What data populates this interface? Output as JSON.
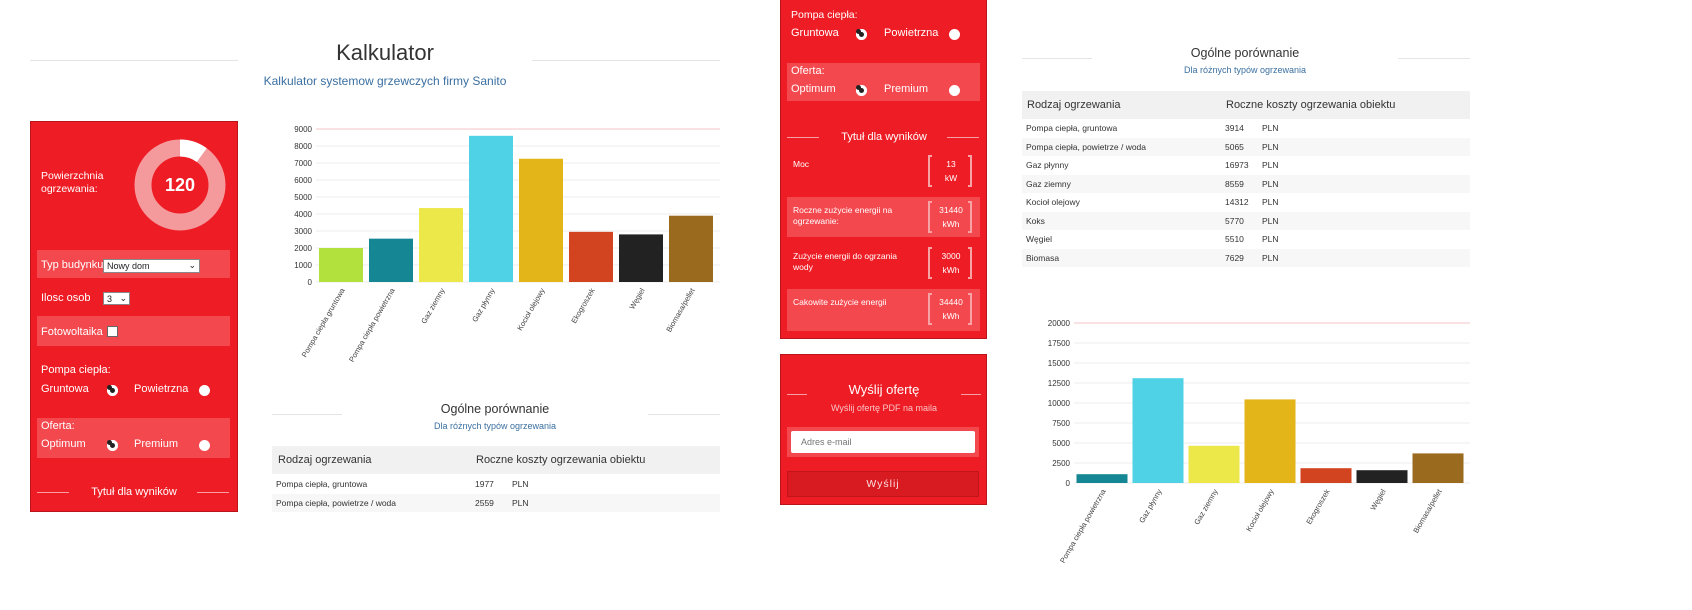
{
  "header": {
    "title": "Kalkulator",
    "subtitle": "Kalkulator systemow grzewczych firmy Sanito"
  },
  "form": {
    "area_label": "Powierzchnia ogrzewania:",
    "area_value": "120",
    "area_fraction": 0.1,
    "building_type_label": "Typ budynku",
    "building_type_value": "Nowy dom",
    "persons_label": "Ilosc osob",
    "persons_value": "3",
    "pv_label": "Fotowoltaika",
    "heat_pump_label": "Pompa ciepła:",
    "heat_pump_options": [
      "Gruntowa",
      "Powietrzna"
    ],
    "offer_label": "Oferta:",
    "offer_options": [
      "Optimum",
      "Premium"
    ],
    "results_title": "Tytuł dla wyników"
  },
  "results": {
    "items": [
      {
        "label": "Moc",
        "value": "13",
        "unit": "kW"
      },
      {
        "label": "Roczne zużycie energii na ogrzewanie:",
        "value": "31440",
        "unit": "kWh"
      },
      {
        "label": "Zużycie energii do ogrzania wody",
        "value": "3000",
        "unit": "kWh"
      },
      {
        "label": "Cakowite zużycie energii",
        "value": "34440",
        "unit": "kWh"
      }
    ]
  },
  "send": {
    "title": "Wyślij ofertę",
    "subtitle": "Wyślij ofertę PDF na maila",
    "email_placeholder": "Adres e-mail",
    "button": "Wyślij"
  },
  "comparison": {
    "title": "Ogólne porównanie",
    "subtitle": "Dla różnych typów ogrzewania",
    "col_type": "Rodzaj ogrzewania",
    "col_cost": "Roczne koszty ogrzewania obiektu",
    "currency": "PLN",
    "rows_left": [
      {
        "type": "Pompa ciepła, gruntowa",
        "cost": "1977"
      },
      {
        "type": "Pompa ciepła, powietrze / woda",
        "cost": "2559"
      }
    ],
    "rows_right": [
      {
        "type": "Pompa ciepła, gruntowa",
        "cost": "3914"
      },
      {
        "type": "Pompa ciepła, powietrze / woda",
        "cost": "5065"
      },
      {
        "type": "Gaz płynny",
        "cost": "16973"
      },
      {
        "type": "Gaz ziemny",
        "cost": "8559"
      },
      {
        "type": "Kocioł olejowy",
        "cost": "14312"
      },
      {
        "type": "Koks",
        "cost": "5770"
      },
      {
        "type": "Węgiel",
        "cost": "5510"
      },
      {
        "type": "Biomasa",
        "cost": "7629"
      }
    ]
  },
  "chart_data": [
    {
      "type": "bar",
      "categories": [
        "Pompa ciepła gruntowa",
        "Pompa ciepła powietrzna",
        "Gaz ziemny",
        "Gaz płynny",
        "Kocioł olejowy",
        "Ekogroszek",
        "Węgiel",
        "Biomasa/pellet"
      ],
      "values": [
        2000,
        2550,
        4350,
        8600,
        7250,
        2950,
        2800,
        3900
      ],
      "colors": [
        "#b2e03c",
        "#148694",
        "#ede84a",
        "#4fd2e6",
        "#e4b519",
        "#d2431f",
        "#222222",
        "#9a6b1e"
      ],
      "yticks": [
        0,
        1000,
        2000,
        3000,
        4000,
        5000,
        6000,
        7000,
        8000,
        9000
      ],
      "ylim": [
        0,
        9000
      ],
      "grid": true
    },
    {
      "type": "bar",
      "categories": [
        "Pompa ciepła powietrzna",
        "Gaz płynny",
        "Gaz ziemny",
        "Kocioł olejowy",
        "Ekogroszek",
        "Węgiel",
        "Biomasa/pellet"
      ],
      "values": [
        1100,
        13100,
        4650,
        10450,
        1850,
        1600,
        3700
      ],
      "colors": [
        "#148694",
        "#4fd2e6",
        "#ede84a",
        "#e4b519",
        "#d2431f",
        "#222222",
        "#9a6b1e"
      ],
      "yticks": [
        0,
        2500,
        5000,
        7500,
        10000,
        12500,
        15000,
        17500,
        20000
      ],
      "ylim": [
        0,
        20000
      ],
      "grid": true
    }
  ]
}
